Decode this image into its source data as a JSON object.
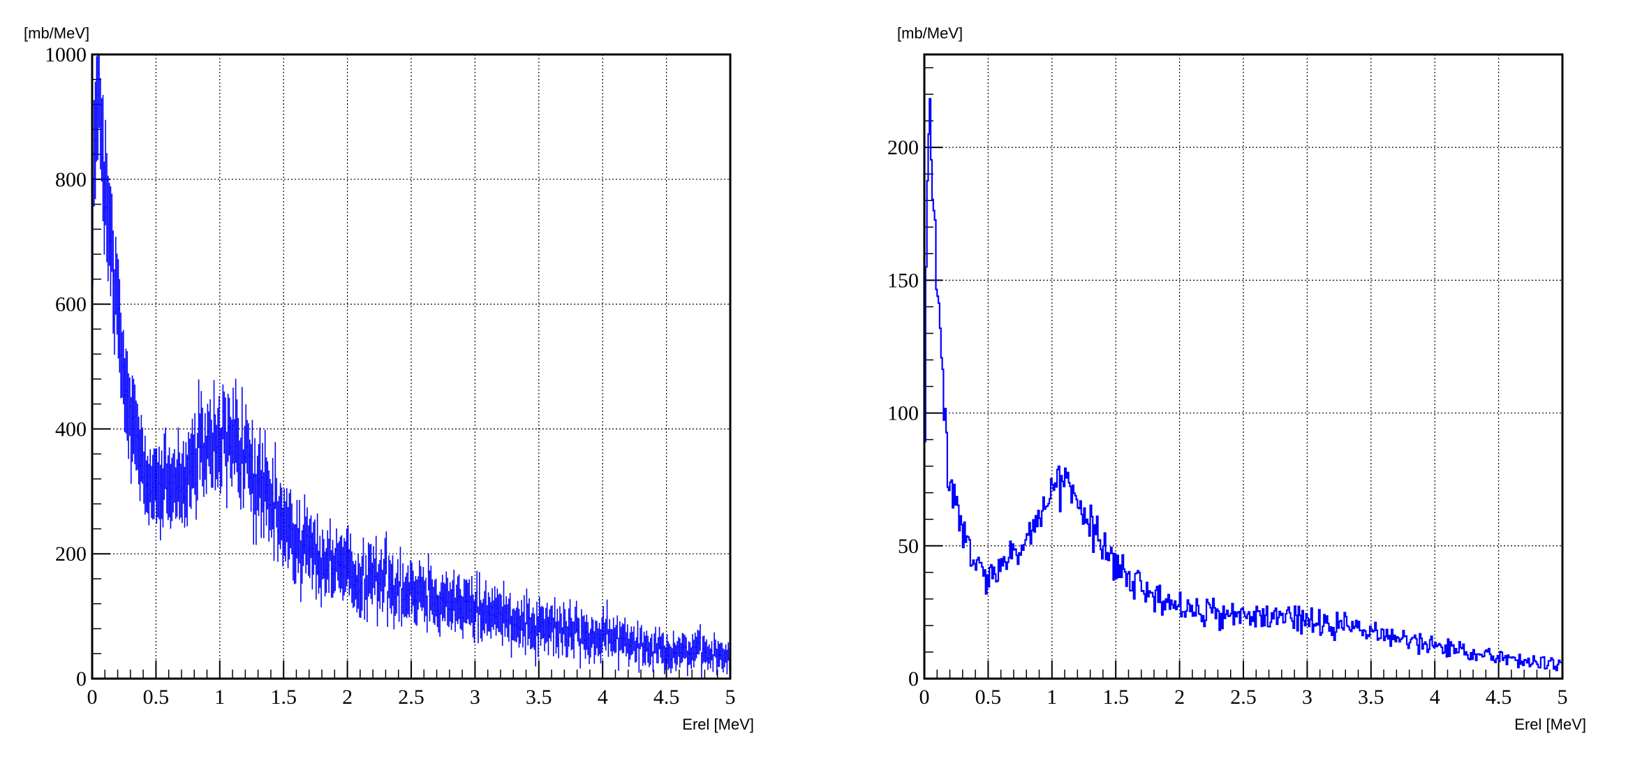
{
  "chart_data": [
    {
      "type": "histogram",
      "style": "error-bars",
      "ylabel": "[mb/MeV]",
      "xlabel": "Erel [MeV]",
      "xlim": [
        0,
        5
      ],
      "ylim": [
        0,
        1000
      ],
      "xticks": [
        "0",
        "0.5",
        "1",
        "1.5",
        "2",
        "2.5",
        "3",
        "3.5",
        "4",
        "4.5",
        "5"
      ],
      "yticks": [
        "0",
        "200",
        "400",
        "600",
        "800",
        "1000"
      ],
      "grid": true,
      "color": "#0000ff",
      "bin_width": 0.01,
      "shape_points": [
        [
          0.0,
          780
        ],
        [
          0.02,
          860
        ],
        [
          0.05,
          920
        ],
        [
          0.08,
          880
        ],
        [
          0.1,
          760
        ],
        [
          0.15,
          680
        ],
        [
          0.2,
          560
        ],
        [
          0.25,
          470
        ],
        [
          0.3,
          420
        ],
        [
          0.35,
          380
        ],
        [
          0.4,
          350
        ],
        [
          0.45,
          325
        ],
        [
          0.5,
          310
        ],
        [
          0.55,
          300
        ],
        [
          0.6,
          305
        ],
        [
          0.7,
          320
        ],
        [
          0.8,
          345
        ],
        [
          0.9,
          365
        ],
        [
          1.0,
          375
        ],
        [
          1.05,
          378
        ],
        [
          1.1,
          375
        ],
        [
          1.2,
          350
        ],
        [
          1.3,
          310
        ],
        [
          1.4,
          270
        ],
        [
          1.5,
          245
        ],
        [
          1.6,
          225
        ],
        [
          1.7,
          205
        ],
        [
          1.8,
          190
        ],
        [
          1.9,
          180
        ],
        [
          2.0,
          172
        ],
        [
          2.2,
          160
        ],
        [
          2.4,
          150
        ],
        [
          2.6,
          138
        ],
        [
          2.8,
          125
        ],
        [
          3.0,
          112
        ],
        [
          3.2,
          102
        ],
        [
          3.4,
          92
        ],
        [
          3.6,
          82
        ],
        [
          3.8,
          74
        ],
        [
          4.0,
          66
        ],
        [
          4.2,
          58
        ],
        [
          4.4,
          52
        ],
        [
          4.6,
          46
        ],
        [
          4.8,
          40
        ],
        [
          5.0,
          35
        ]
      ]
    },
    {
      "type": "histogram",
      "style": "step",
      "ylabel": "[mb/MeV]",
      "xlabel": "Erel [MeV]",
      "xlim": [
        0,
        5
      ],
      "ylim": [
        0,
        235
      ],
      "xticks": [
        "0",
        "0.5",
        "1",
        "1.5",
        "2",
        "2.5",
        "3",
        "3.5",
        "4",
        "4.5",
        "5"
      ],
      "yticks": [
        "0",
        "50",
        "100",
        "150",
        "200"
      ],
      "grid": true,
      "color": "#0000ff",
      "bin_width": 0.01,
      "shape_points": [
        [
          0.0,
          25
        ],
        [
          0.01,
          150
        ],
        [
          0.03,
          195
        ],
        [
          0.05,
          220
        ],
        [
          0.07,
          180
        ],
        [
          0.09,
          158
        ],
        [
          0.12,
          128
        ],
        [
          0.15,
          105
        ],
        [
          0.18,
          82
        ],
        [
          0.22,
          70
        ],
        [
          0.26,
          62
        ],
        [
          0.3,
          55
        ],
        [
          0.35,
          48
        ],
        [
          0.4,
          43
        ],
        [
          0.45,
          40
        ],
        [
          0.5,
          38
        ],
        [
          0.55,
          39
        ],
        [
          0.6,
          41
        ],
        [
          0.7,
          45
        ],
        [
          0.8,
          53
        ],
        [
          0.9,
          61
        ],
        [
          1.0,
          69
        ],
        [
          1.05,
          72
        ],
        [
          1.1,
          73
        ],
        [
          1.15,
          71
        ],
        [
          1.2,
          67
        ],
        [
          1.3,
          57
        ],
        [
          1.4,
          49
        ],
        [
          1.5,
          42
        ],
        [
          1.6,
          38
        ],
        [
          1.7,
          34
        ],
        [
          1.8,
          31
        ],
        [
          1.9,
          29
        ],
        [
          2.0,
          27
        ],
        [
          2.2,
          25
        ],
        [
          2.4,
          24
        ],
        [
          2.6,
          23.5
        ],
        [
          2.8,
          23
        ],
        [
          3.0,
          21.5
        ],
        [
          3.2,
          20
        ],
        [
          3.4,
          18.5
        ],
        [
          3.6,
          16.5
        ],
        [
          3.8,
          14.5
        ],
        [
          4.0,
          12.5
        ],
        [
          4.2,
          10.5
        ],
        [
          4.4,
          9
        ],
        [
          4.6,
          7.5
        ],
        [
          4.8,
          6
        ],
        [
          5.0,
          5
        ]
      ]
    }
  ]
}
